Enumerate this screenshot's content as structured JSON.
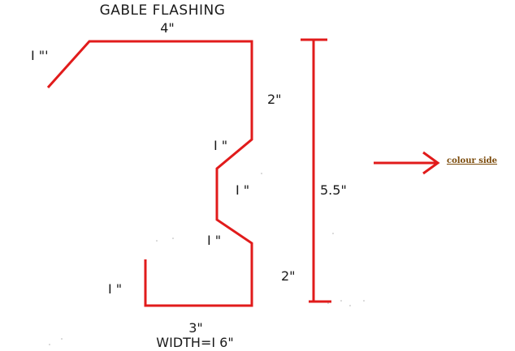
{
  "diagram": {
    "title": "GABLE FLASHING",
    "labels": {
      "top_width": "4\"",
      "hem_left": "I \"'",
      "upper_vertical": "2\"",
      "upper_bend": "I \"",
      "middle_vertical": "I \"",
      "lower_bend": "I \"",
      "bottom_hem": "I \"",
      "bottom_width": "3\"",
      "total_width": "WIDTH=I 6\"",
      "overall_height": "5.5\"",
      "lower_height": "2\""
    },
    "annotation": {
      "colour_side": "colour side"
    },
    "colors": {
      "line": "#e11b1b",
      "text": "#1a1a1a",
      "annotation": "#7a4a0a"
    }
  }
}
